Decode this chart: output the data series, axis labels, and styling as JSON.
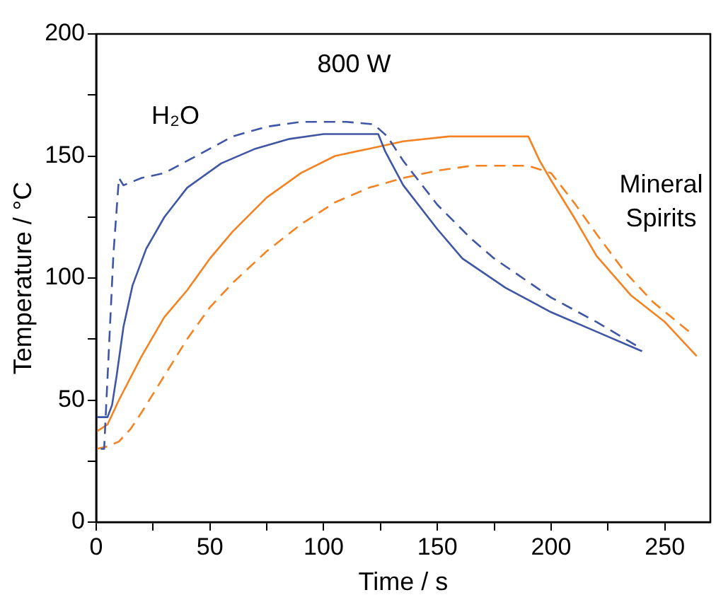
{
  "chart_data": {
    "type": "line",
    "title": "800 W",
    "xlabel": "Time / s",
    "ylabel": "Temperature / °C",
    "annotations": [
      "H₂O",
      "Mineral Spirits"
    ],
    "xlim": [
      0,
      270
    ],
    "xticks": [
      0,
      {
        "value": 25,
        "label": null
      },
      50,
      {
        "value": 75,
        "label": null
      },
      100,
      {
        "value": 125,
        "label": null
      },
      150,
      {
        "value": 175,
        "label": null
      },
      200,
      {
        "value": 225,
        "label": null
      },
      250
    ],
    "ylim": [
      0,
      200
    ],
    "yticks": [
      0,
      {
        "value": 25,
        "label": null
      },
      50,
      {
        "value": 75,
        "label": null
      },
      100,
      {
        "value": 125,
        "label": null
      },
      150,
      {
        "value": 175,
        "label": null
      },
      200
    ],
    "grid": false,
    "legend": false,
    "marker": "none",
    "series": [
      {
        "color": "#3f56a6",
        "line_style": "solid",
        "x": [
          0,
          5,
          7,
          9,
          12,
          16,
          22,
          30,
          40,
          55,
          70,
          85,
          100,
          115,
          124,
          127,
          135,
          150,
          161,
          180,
          200,
          220,
          240
        ],
        "values": [
          43,
          43,
          48,
          60,
          80,
          97,
          112,
          125,
          137,
          147,
          153,
          157,
          159,
          159,
          159,
          152,
          138,
          120,
          108,
          96,
          86,
          78,
          70
        ]
      },
      {
        "color": "#3f56a6",
        "line_style": "dashed",
        "x": [
          2,
          3.5,
          7.6,
          10,
          12,
          20,
          30,
          40,
          50,
          60,
          75,
          90,
          110,
          122,
          128,
          135,
          150,
          165,
          175,
          200,
          220,
          238
        ],
        "values": [
          30,
          30,
          110,
          141,
          138,
          141,
          143,
          148,
          153,
          158,
          162,
          164,
          164,
          163,
          158,
          148,
          130,
          116,
          108,
          92,
          82,
          72
        ]
      },
      {
        "color": "#f58220",
        "line_style": "solid",
        "x": [
          0,
          5,
          10,
          20,
          30,
          40,
          50,
          60,
          75,
          90,
          105,
          120,
          135,
          155,
          190,
          195,
          200,
          210,
          220,
          235,
          250,
          264
        ],
        "values": [
          37,
          40,
          50,
          68,
          84,
          95,
          108,
          119,
          133,
          143,
          150,
          153,
          156,
          158,
          158,
          148,
          140,
          125,
          109,
          93,
          82,
          68
        ]
      },
      {
        "color": "#f58220",
        "line_style": "dashed",
        "x": [
          0,
          5,
          10,
          15,
          20,
          30,
          40,
          50,
          60,
          75,
          90,
          105,
          120,
          135,
          150,
          165,
          180,
          190,
          200,
          210,
          220,
          232,
          245,
          262
        ],
        "values": [
          30,
          31,
          33,
          38,
          45,
          60,
          75,
          88,
          98,
          111,
          122,
          131,
          137,
          141,
          144,
          146,
          146,
          146,
          143,
          131,
          118,
          103,
          90,
          77
        ]
      }
    ]
  }
}
